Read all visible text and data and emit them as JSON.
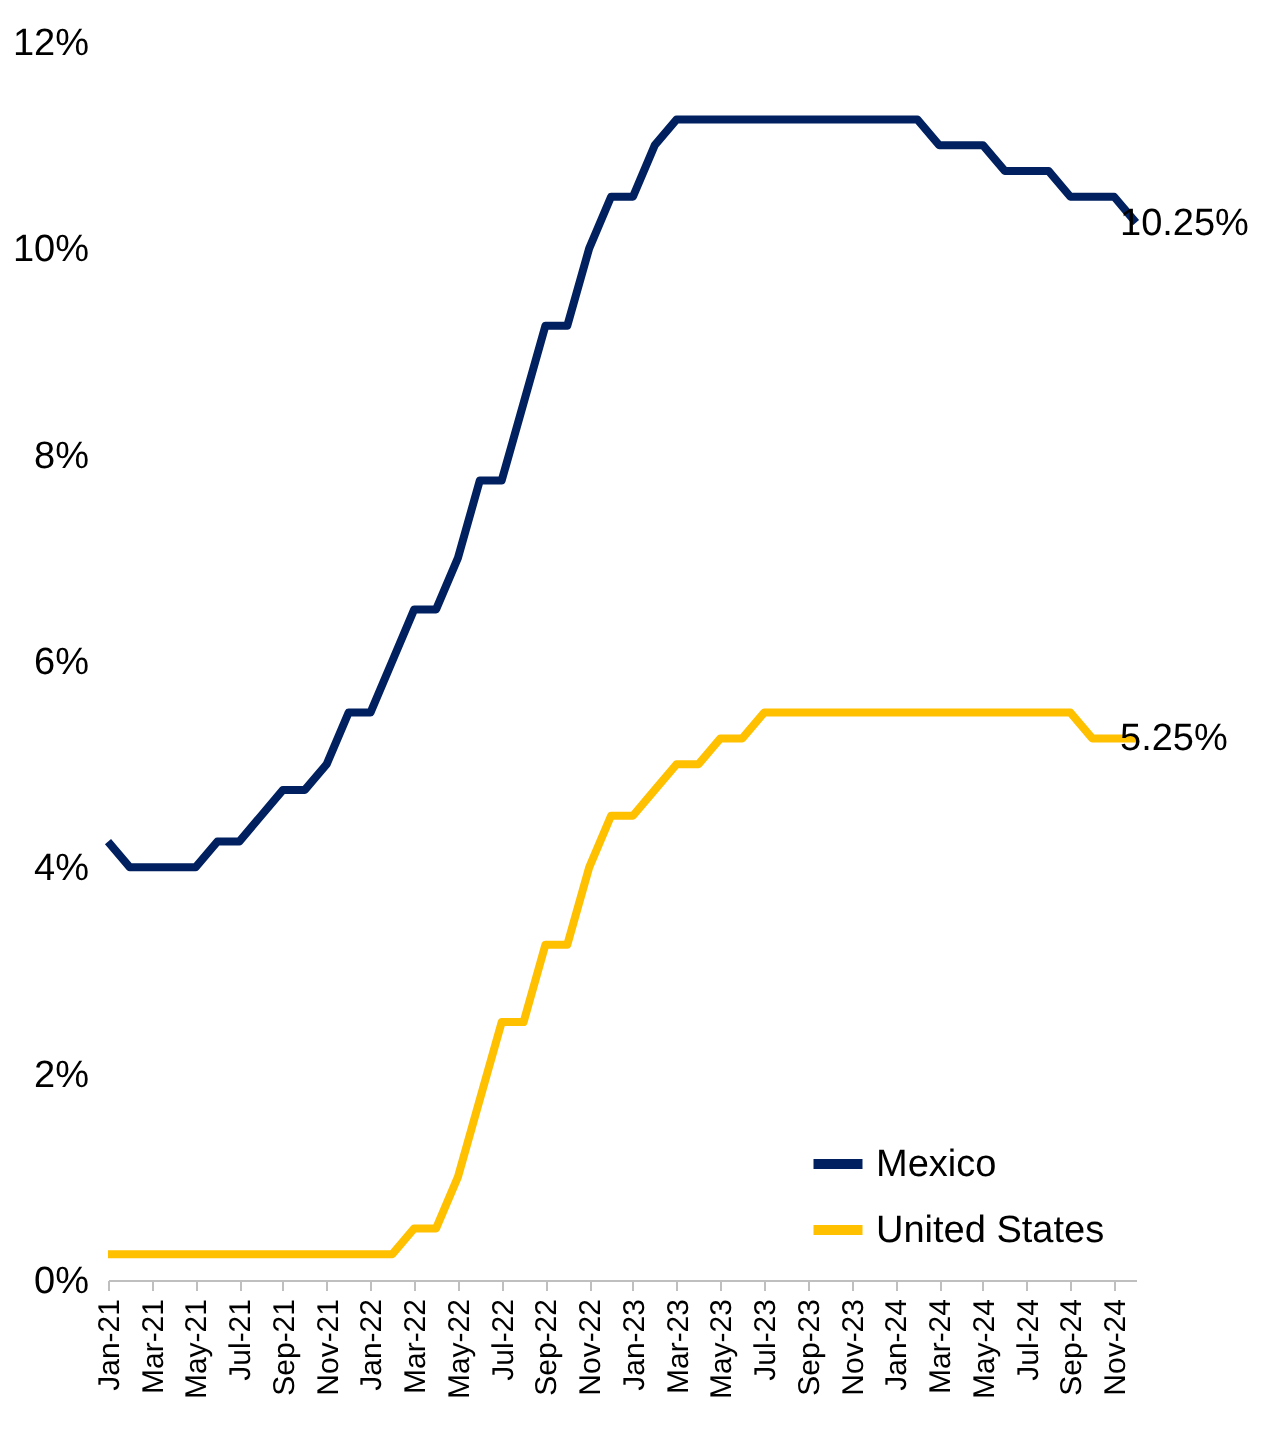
{
  "chart_data": {
    "type": "line",
    "categories": [
      "Jan-21",
      null,
      "Mar-21",
      null,
      "May-21",
      null,
      "Jul-21",
      null,
      "Sep-21",
      null,
      "Nov-21",
      null,
      "Jan-22",
      null,
      "Mar-22",
      null,
      "May-22",
      null,
      "Jul-22",
      null,
      "Sep-22",
      null,
      "Nov-22",
      null,
      "Jan-23",
      null,
      "Mar-23",
      null,
      "May-23",
      null,
      "Jul-23",
      null,
      "Sep-23",
      null,
      "Nov-23",
      null,
      "Jan-24",
      null,
      "Mar-24",
      null,
      "May-24",
      null,
      "Jul-24",
      null,
      "Sep-24",
      null,
      "Nov-24",
      null
    ],
    "series": [
      {
        "name": "Mexico",
        "color": "#002060",
        "values": [
          4.25,
          4.0,
          4.0,
          4.0,
          4.0,
          4.25,
          4.25,
          4.5,
          4.75,
          4.75,
          5.0,
          5.5,
          5.5,
          6.0,
          6.5,
          6.5,
          7.0,
          7.75,
          7.75,
          8.5,
          9.25,
          9.25,
          10.0,
          10.5,
          10.5,
          11.0,
          11.25,
          11.25,
          11.25,
          11.25,
          11.25,
          11.25,
          11.25,
          11.25,
          11.25,
          11.25,
          11.25,
          11.25,
          11.0,
          11.0,
          11.0,
          10.75,
          10.75,
          10.75,
          10.5,
          10.5,
          10.5,
          10.25
        ]
      },
      {
        "name": "United States",
        "color": "#ffc000",
        "values": [
          0.25,
          0.25,
          0.25,
          0.25,
          0.25,
          0.25,
          0.25,
          0.25,
          0.25,
          0.25,
          0.25,
          0.25,
          0.25,
          0.25,
          0.5,
          0.5,
          1.0,
          1.75,
          2.5,
          2.5,
          3.25,
          3.25,
          4.0,
          4.5,
          4.5,
          4.75,
          5.0,
          5.0,
          5.25,
          5.25,
          5.5,
          5.5,
          5.5,
          5.5,
          5.5,
          5.5,
          5.5,
          5.5,
          5.5,
          5.5,
          5.5,
          5.5,
          5.5,
          5.5,
          5.5,
          5.25,
          5.25,
          5.25
        ]
      }
    ],
    "ylim": [
      0,
      12
    ],
    "yticks": [
      {
        "value": 0,
        "label": "0%"
      },
      {
        "value": 2,
        "label": "2%"
      },
      {
        "value": 4,
        "label": "4%"
      },
      {
        "value": 6,
        "label": "6%"
      },
      {
        "value": 8,
        "label": "8%"
      },
      {
        "value": 10,
        "label": "10%"
      },
      {
        "value": 12,
        "label": "12%"
      }
    ],
    "annotations": [
      "10.25%",
      "5.25%"
    ],
    "grid": false,
    "legend": "bottom right",
    "marker": "none",
    "line_style": "solid"
  }
}
